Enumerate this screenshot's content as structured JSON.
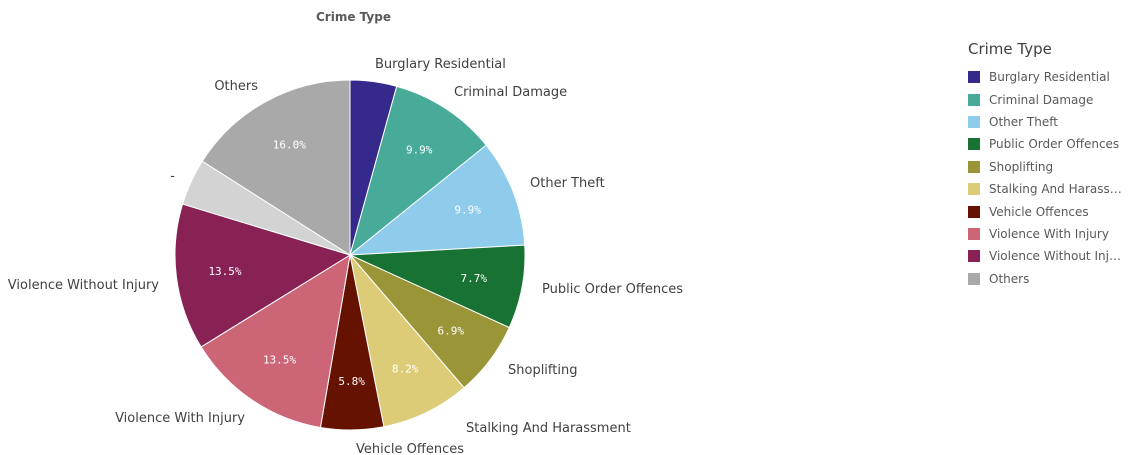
{
  "chart_data": {
    "type": "pie",
    "title": "Crime Type",
    "start_angle_deg": 0,
    "slices": [
      {
        "label": "Burglary Residential",
        "value": 4.3,
        "pct_label": "",
        "color": "#352a8c"
      },
      {
        "label": "Criminal Damage",
        "value": 9.9,
        "pct_label": "9.9%",
        "color": "#48ab99"
      },
      {
        "label": "Other Theft",
        "value": 9.9,
        "pct_label": "9.9%",
        "color": "#8fcbea"
      },
      {
        "label": "Public Order Offences",
        "value": 7.7,
        "pct_label": "7.7%",
        "color": "#177233"
      },
      {
        "label": "Shoplifting",
        "value": 6.9,
        "pct_label": "6.9%",
        "color": "#9a9536"
      },
      {
        "label": "Stalking And Harassment",
        "value": 8.2,
        "pct_label": "8.2%",
        "color": "#dccc77"
      },
      {
        "label": "Vehicle Offences",
        "value": 5.8,
        "pct_label": "5.8%",
        "color": "#661200"
      },
      {
        "label": "Violence With Injury",
        "value": 13.5,
        "pct_label": "13.5%",
        "color": "#cc6677"
      },
      {
        "label": "Violence Without Injury",
        "value": 13.5,
        "pct_label": "13.5%",
        "color": "#882255"
      },
      {
        "label": "-",
        "value": 4.3,
        "pct_label": "",
        "color": "#d3d3d3"
      },
      {
        "label": "Others",
        "value": 16.0,
        "pct_label": "16.0%",
        "color": "#a9a9a9"
      }
    ],
    "legend": {
      "title": "Crime Type",
      "placement": "right",
      "items": [
        {
          "label": "Burglary Residential",
          "color": "#352a8c"
        },
        {
          "label": "Criminal Damage",
          "color": "#48ab99"
        },
        {
          "label": "Other Theft",
          "color": "#8fcbea"
        },
        {
          "label": "Public Order Offences",
          "color": "#177233"
        },
        {
          "label": "Shoplifting",
          "color": "#9a9536"
        },
        {
          "label": "Stalking And Harassm...",
          "color": "#dccc77"
        },
        {
          "label": "Vehicle Offences",
          "color": "#661200"
        },
        {
          "label": "Violence With Injury",
          "color": "#cc6677"
        },
        {
          "label": "Violence Without Injury",
          "color": "#882255"
        },
        {
          "label": "Others",
          "color": "#a9a9a9"
        }
      ]
    }
  }
}
